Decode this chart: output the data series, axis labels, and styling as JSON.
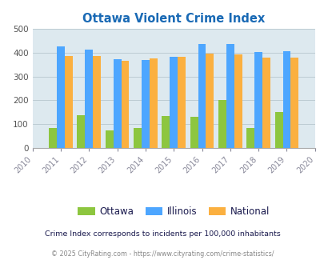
{
  "title": "Ottawa Violent Crime Index",
  "years": [
    2011,
    2012,
    2013,
    2014,
    2015,
    2016,
    2017,
    2018,
    2019
  ],
  "ottawa": [
    82,
    138,
    72,
    83,
    135,
    130,
    200,
    85,
    150
  ],
  "illinois": [
    428,
    414,
    372,
    370,
    384,
    438,
    438,
    405,
    408
  ],
  "national": [
    387,
    387,
    367,
    375,
    383,
    397,
    394,
    379,
    379
  ],
  "colors": {
    "ottawa": "#8dc63f",
    "illinois": "#4da6ff",
    "national": "#fbb040"
  },
  "ylim": [
    0,
    500
  ],
  "yticks": [
    0,
    100,
    200,
    300,
    400,
    500
  ],
  "bg_color": "#dde9ef",
  "title_color": "#1a6ab5",
  "note_text": "Crime Index corresponds to incidents per 100,000 inhabitants",
  "note_color": "#1a1a4e",
  "copyright_text": "© 2025 CityRating.com - https://www.cityrating.com/crime-statistics/",
  "copyright_color": "#888888",
  "legend_labels": [
    "Ottawa",
    "Illinois",
    "National"
  ],
  "bar_width": 0.28,
  "grid_color": "#b0c0c8"
}
